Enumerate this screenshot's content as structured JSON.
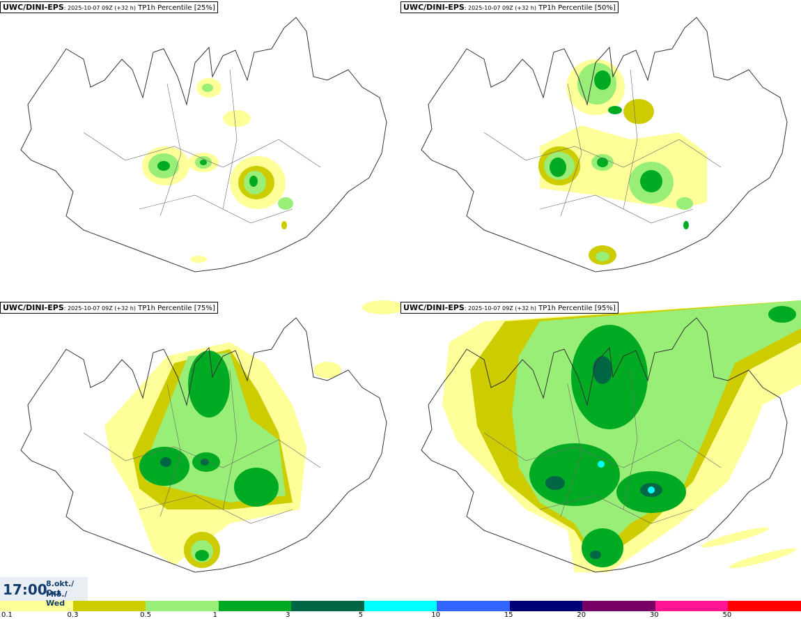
{
  "panels": [
    {
      "model": "UWC/DINI-EPS",
      "run": ": 2025-10-07 09Z (+32 h)",
      "field": "TP1h Percentile",
      "pct": "[25%]"
    },
    {
      "model": "UWC/DINI-EPS",
      "run": ": 2025-10-07 09Z (+32 h)",
      "field": "TP1h Percentile",
      "pct": "[50%]"
    },
    {
      "model": "UWC/DINI-EPS",
      "run": ": 2025-10-07 09Z (+32 h)",
      "field": "TP1h Percentile",
      "pct": "[75%]"
    },
    {
      "model": "UWC/DINI-EPS",
      "run": ": 2025-10-07 09Z (+32 h)",
      "field": "TP1h Percentile",
      "pct": "[95%]"
    }
  ],
  "valid_time": {
    "time": "17:00",
    "date_line1": "8.okt./ Oct",
    "date_line2": "Mið./ Wed"
  },
  "legend": {
    "colors": [
      "#ffff99",
      "#cccc00",
      "#99ee77",
      "#00aa22",
      "#006644",
      "#00ffff",
      "#3366ff",
      "#000077",
      "#770066",
      "#ff1493",
      "#ff0000"
    ],
    "ticks": [
      "0.1",
      "0.3",
      "0.5",
      "1",
      "3",
      "5",
      "10",
      "15",
      "20",
      "30",
      "50"
    ]
  }
}
